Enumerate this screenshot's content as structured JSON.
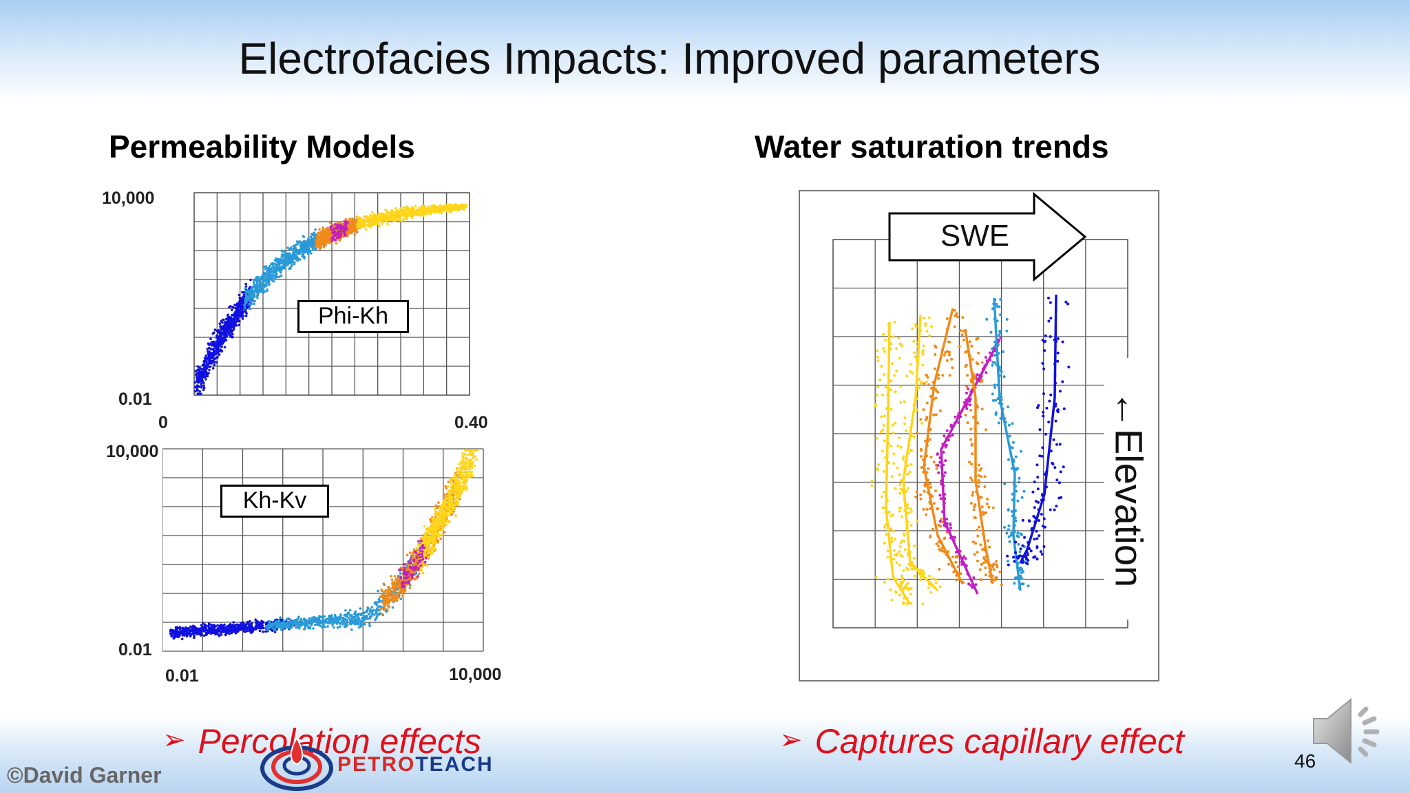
{
  "slide": {
    "title": "Electrofacies Impacts: Improved parameters",
    "page_number": "46",
    "credit": "©David Garner",
    "logo_text": "PETROTEACH",
    "logo_text_part1": "PETRO",
    "logo_text_part2": "TEACH"
  },
  "left": {
    "heading": "Permeability Models",
    "bullet": "Percolation effects",
    "plot1": {
      "label": "Phi-Kh",
      "y_top": "10,000",
      "y_bottom": "0.01",
      "x_left": "0",
      "x_right": "0.40"
    },
    "plot2": {
      "label": "Kh-Kv",
      "y_top": "10,000",
      "y_bottom": "0.01",
      "x_left": "0.01",
      "x_right": "10,000"
    }
  },
  "right": {
    "heading": "Water saturation trends",
    "bullet": "Captures capillary effect",
    "arrow_label": "SWE",
    "side_label": "←Elevation"
  },
  "colors": {
    "bullet": "#e0101a",
    "facies": [
      "#1010e0",
      "#2a9ad8",
      "#f08a1a",
      "#ffd51a",
      "#c020c0"
    ]
  },
  "icons": [
    "bullet-arrow-icon",
    "speaker-icon",
    "petroteach-logo-icon"
  ]
}
